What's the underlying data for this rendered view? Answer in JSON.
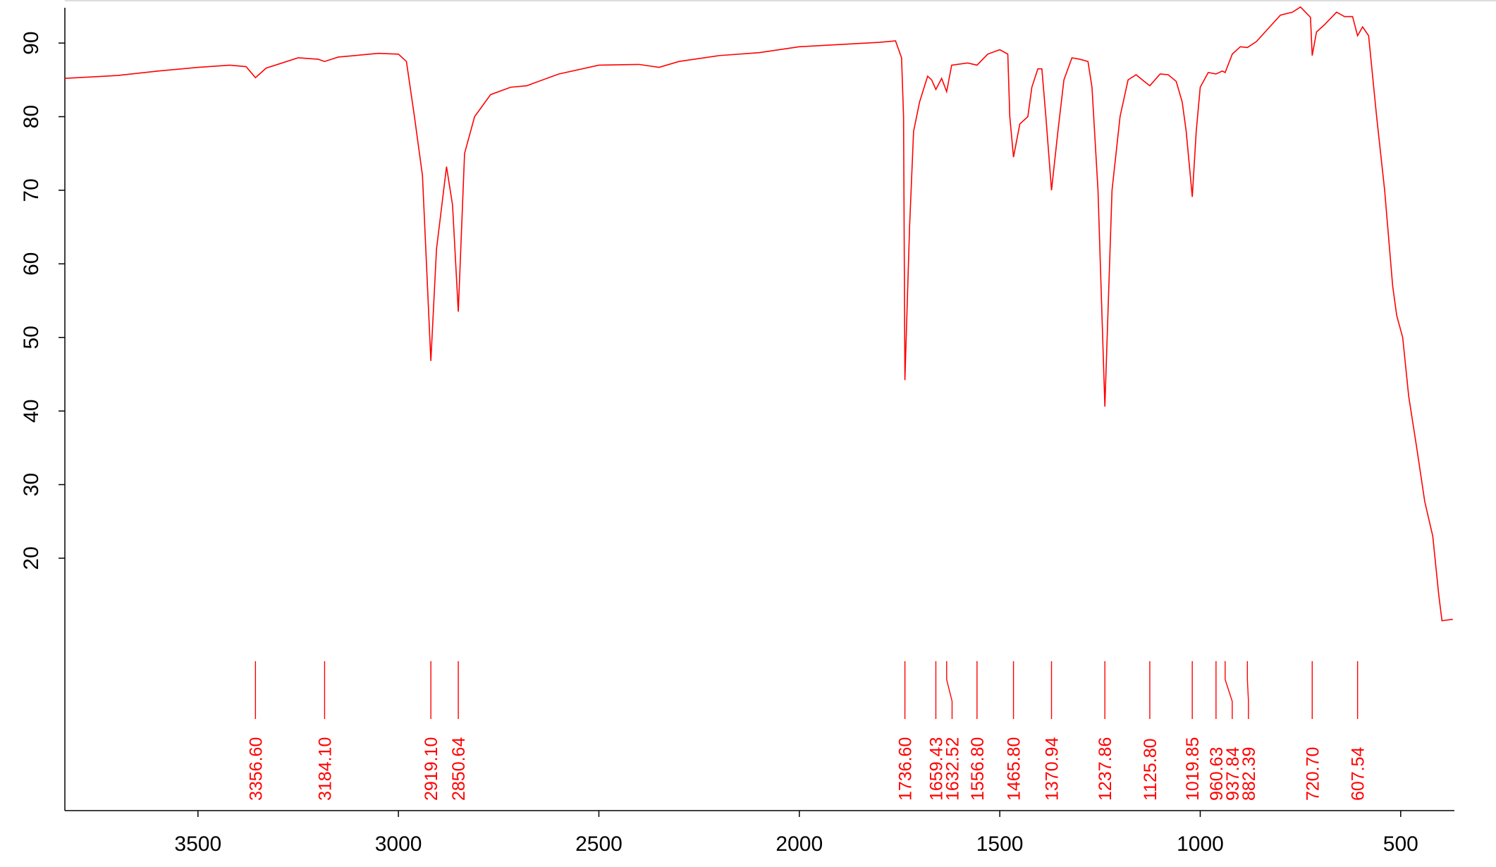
{
  "chart_data": {
    "type": "line",
    "x": [
      3832,
      3700,
      3600,
      3500,
      3420,
      3380,
      3356.6,
      3330,
      3250,
      3200,
      3184.1,
      3150,
      3050,
      3000,
      2980,
      2960,
      2940,
      2919.1,
      2905,
      2880,
      2865,
      2850.64,
      2835,
      2810,
      2770,
      2720,
      2680,
      2600,
      2500,
      2400,
      2350,
      2300,
      2200,
      2100,
      2000,
      1900,
      1800,
      1760,
      1745,
      1740,
      1736.6,
      1725,
      1715,
      1700,
      1680,
      1670,
      1659.43,
      1645,
      1632.52,
      1620,
      1580,
      1556.8,
      1530,
      1500,
      1480,
      1475,
      1465.8,
      1450,
      1430,
      1420,
      1405,
      1395,
      1385,
      1370.94,
      1355,
      1340,
      1320,
      1300,
      1280,
      1270,
      1255,
      1237.86,
      1220,
      1200,
      1180,
      1160,
      1140,
      1125.8,
      1100,
      1080,
      1060,
      1045,
      1035,
      1019.85,
      1010,
      1000,
      980,
      960.63,
      945,
      937.84,
      920,
      900,
      882.39,
      860,
      830,
      800,
      770,
      750,
      725,
      720.7,
      710,
      690,
      660,
      640,
      620,
      607.54,
      595,
      580,
      560,
      540,
      520,
      510,
      495,
      480,
      460,
      440,
      420,
      405,
      397,
      370
    ],
    "series": [
      {
        "color": "#ff0000",
        "values": [
          85.2,
          85.6,
          86.2,
          86.7,
          87.0,
          86.8,
          85.3,
          86.6,
          88.0,
          87.8,
          87.5,
          88.1,
          88.6,
          88.5,
          87.5,
          80,
          72,
          46.8,
          62,
          73.2,
          68,
          53.5,
          75,
          80,
          83,
          84,
          84.2,
          85.8,
          87.0,
          87.1,
          86.7,
          87.5,
          88.3,
          88.7,
          89.5,
          89.8,
          90.1,
          90.3,
          88,
          80,
          44.2,
          65,
          78,
          82,
          85.5,
          85,
          83.7,
          85.2,
          83.4,
          87,
          87.3,
          87.0,
          88.5,
          89.1,
          88.5,
          80,
          74.5,
          79,
          80,
          84,
          86.5,
          86.5,
          80,
          70,
          78,
          85,
          88,
          87.8,
          87.5,
          84,
          70,
          40.6,
          70,
          80,
          85,
          85.7,
          84.8,
          84.2,
          85.8,
          85.7,
          84.8,
          82,
          78,
          69.1,
          78,
          84,
          86,
          85.8,
          86.2,
          86.0,
          88.5,
          89.5,
          89.4,
          90.2,
          92,
          93.8,
          94.2,
          94.9,
          93.5,
          88.3,
          91.5,
          92.5,
          94.2,
          93.6,
          93.6,
          91.0,
          92.2,
          91.0,
          80,
          70,
          57,
          53,
          50,
          42,
          35,
          27.7,
          23,
          15,
          11.5,
          11.7
        ]
      }
    ],
    "xlim": [
      3832,
      366
    ],
    "ylim": [
      -14.3,
      94.8
    ],
    "xticks": [
      3500,
      3000,
      2500,
      2000,
      1500,
      1000,
      500
    ],
    "yticks": [
      20,
      30,
      40,
      50,
      60,
      70,
      80,
      90
    ],
    "peaks": [
      {
        "value": 3356.6,
        "label": "3356.60"
      },
      {
        "value": 3184.1,
        "label": "3184.10"
      },
      {
        "value": 2919.1,
        "label": "2919.10"
      },
      {
        "value": 2850.64,
        "label": "2850.64"
      },
      {
        "value": 1736.6,
        "label": "1736.60"
      },
      {
        "value": 1659.43,
        "label": "1659.43"
      },
      {
        "value": 1632.52,
        "label": "1632.52"
      },
      {
        "value": 1556.8,
        "label": "1556.80"
      },
      {
        "value": 1465.8,
        "label": "1465.80"
      },
      {
        "value": 1370.94,
        "label": "1370.94"
      },
      {
        "value": 1237.86,
        "label": "1237.86"
      },
      {
        "value": 1125.8,
        "label": "1125.80"
      },
      {
        "value": 1019.85,
        "label": "1019.85"
      },
      {
        "value": 960.63,
        "label": "960.63"
      },
      {
        "value": 937.84,
        "label": "937.84"
      },
      {
        "value": 882.39,
        "label": "882.39"
      },
      {
        "value": 720.7,
        "label": "720.70"
      },
      {
        "value": 607.54,
        "label": "607.54"
      }
    ]
  }
}
